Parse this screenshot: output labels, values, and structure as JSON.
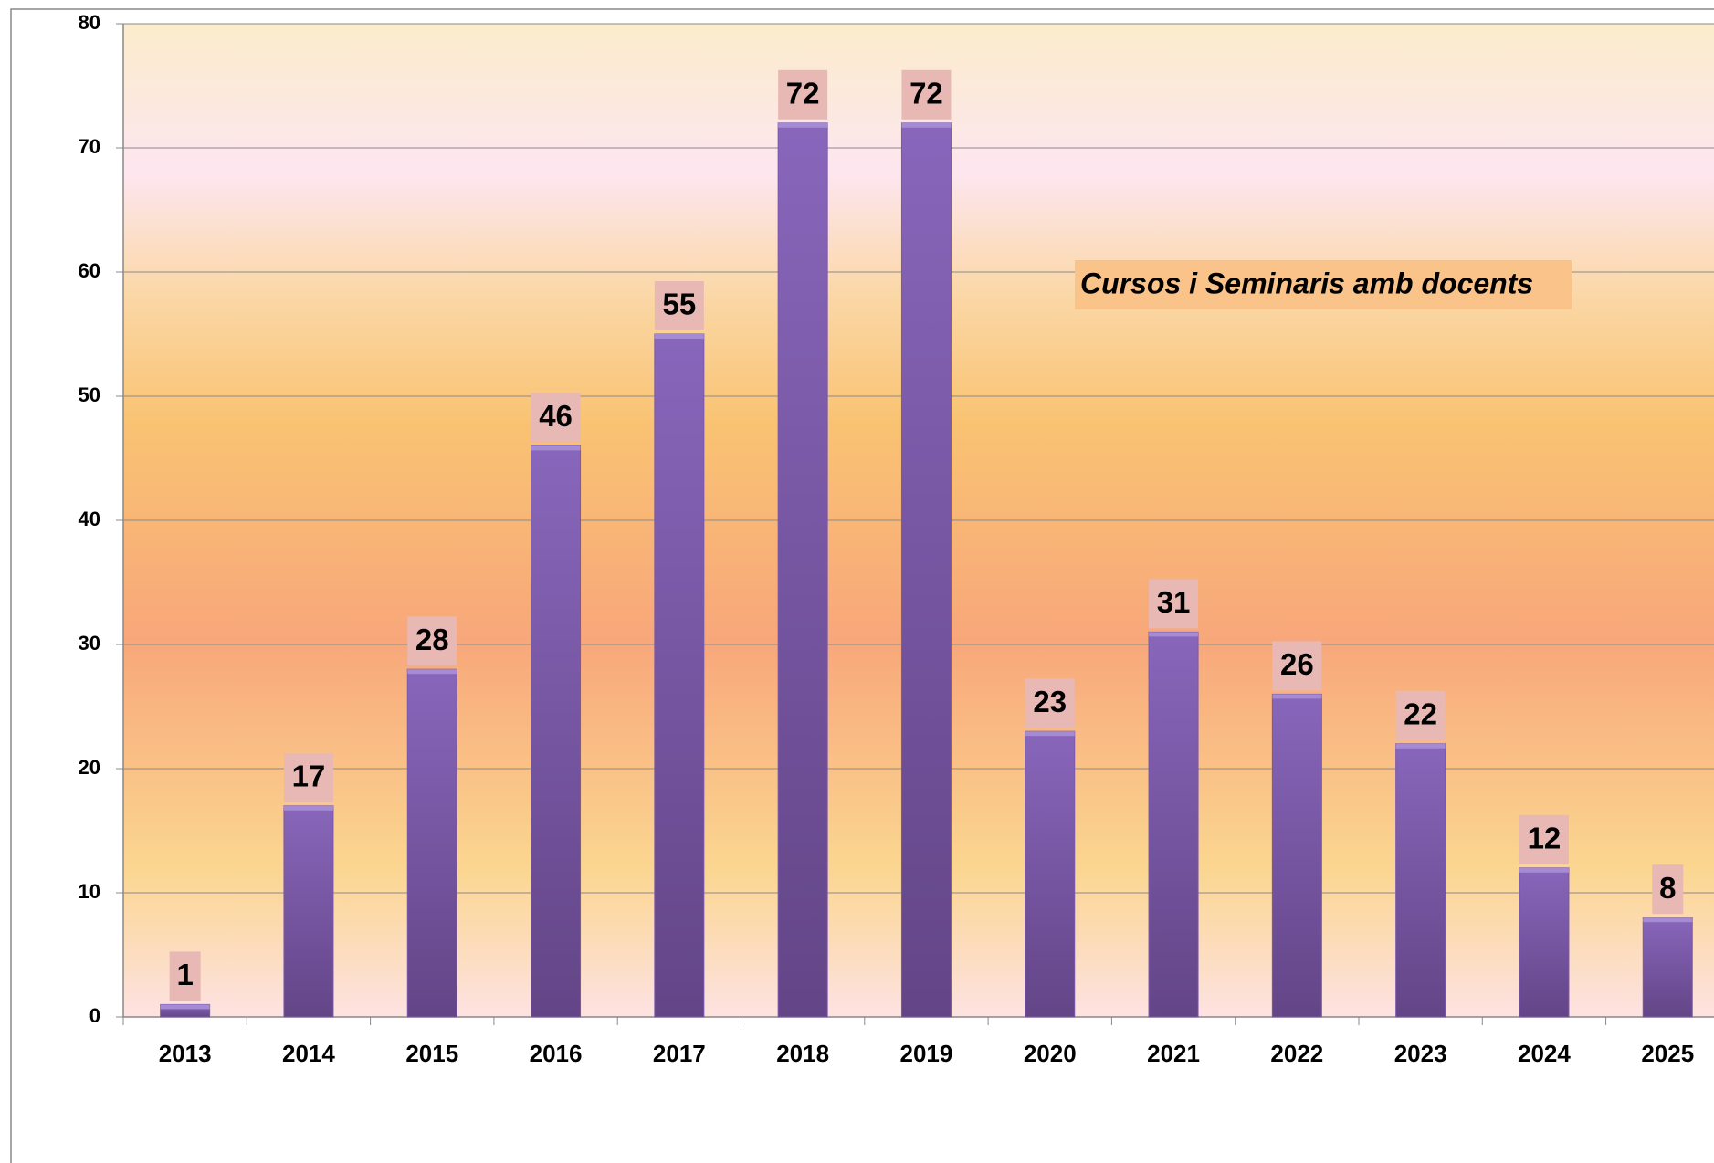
{
  "chart_data": {
    "type": "bar",
    "title": "Cursos i Seminaris amb docents",
    "categories": [
      "2013",
      "2014",
      "2015",
      "2016",
      "2017",
      "2018",
      "2019",
      "2020",
      "2021",
      "2022",
      "2023",
      "2024",
      "2025"
    ],
    "values": [
      1,
      17,
      28,
      46,
      55,
      72,
      72,
      23,
      31,
      26,
      22,
      12,
      8
    ],
    "color": "#7a58ad",
    "ylim": [
      0,
      80
    ],
    "yticks": [
      0,
      10,
      20,
      30,
      40,
      50,
      60,
      70,
      80
    ],
    "grid": true
  }
}
